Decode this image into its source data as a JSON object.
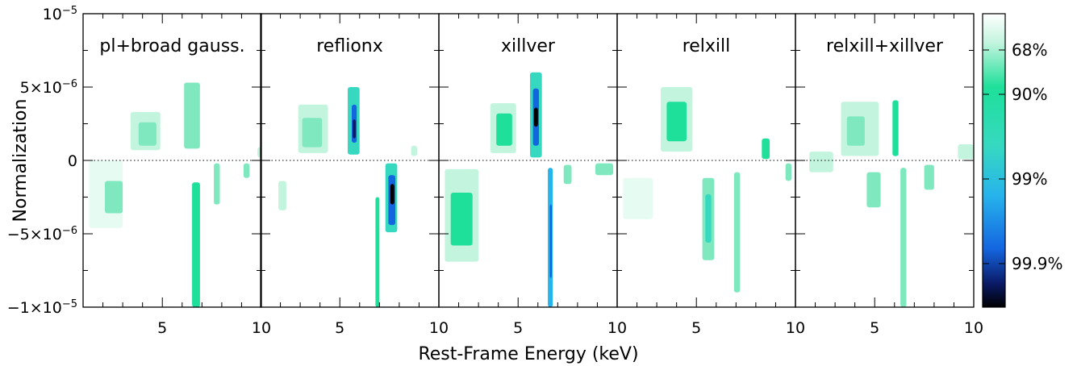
{
  "chart_data": {
    "type": "heatmap",
    "xlabel": "Rest-Frame Energy (keV)",
    "ylabel": "Normalization",
    "xlim": [
      1,
      10
    ],
    "ylim": [
      -1e-05,
      1e-05
    ],
    "x_tick_labels": [
      "5",
      "10"
    ],
    "x_ticks": [
      5,
      10
    ],
    "y_tick_labels": [
      {
        "base": "10",
        "exp": "−5",
        "value": 1e-05
      },
      {
        "base": "5×10",
        "exp": "−6",
        "value": 5e-06
      },
      {
        "base": "0",
        "exp": "",
        "value": 0
      },
      {
        "base": "−5×10",
        "exp": "−6",
        "value": -5e-06
      },
      {
        "base": "−1×10",
        "exp": "−5",
        "value": -1e-05
      }
    ],
    "colorbar": {
      "labels": [
        "68%",
        "90%",
        "99%",
        "99.9%"
      ],
      "levels": [
        0.68,
        0.9,
        0.99,
        0.999
      ],
      "colors": {
        "white": "#ffffff",
        "pale": "#e6fbf2",
        "c68": "#c2f4de",
        "c90": "#1ee09a",
        "c95": "#36d9c0",
        "c99": "#27b3ec",
        "c995": "#1466e0",
        "c999": "#0a1a66",
        "black": "#000000"
      }
    },
    "panels": [
      {
        "title": "pl+broad gauss.",
        "blobs": [
          {
            "x": [
              1.3,
              3.0
            ],
            "y": [
              -4.6e-06,
              0
            ],
            "level": 0.15
          },
          {
            "x": [
              2.1,
              3.0
            ],
            "y": [
              -3.6e-06,
              -1.4e-06
            ],
            "level": 0.45
          },
          {
            "x": [
              3.4,
              4.9
            ],
            "y": [
              7e-07,
              3.3e-06
            ],
            "level": 0.2
          },
          {
            "x": [
              3.8,
              4.7
            ],
            "y": [
              1e-06,
              2.6e-06
            ],
            "level": 0.5
          },
          {
            "x": [
              6.1,
              6.9
            ],
            "y": [
              8e-07,
              5.3e-06
            ],
            "level": 0.4
          },
          {
            "x": [
              6.5,
              6.9
            ],
            "y": [
              -1e-05,
              -1.5e-06
            ],
            "level": 0.55
          },
          {
            "x": [
              7.6,
              7.9
            ],
            "y": [
              -3e-06,
              -2e-07
            ],
            "level": 0.35
          },
          {
            "x": [
              9.1,
              9.4
            ],
            "y": [
              -1.2e-06,
              -2e-07
            ],
            "level": 0.35
          },
          {
            "x": [
              9.8,
              10.0
            ],
            "y": [
              2e-07,
              9e-07
            ],
            "level": 0.3
          }
        ]
      },
      {
        "title": "reflionx",
        "blobs": [
          {
            "x": [
              1.9,
              2.3
            ],
            "y": [
              -3.4e-06,
              -1.4e-06
            ],
            "level": 0.2
          },
          {
            "x": [
              2.9,
              4.4
            ],
            "y": [
              5e-07,
              3.8e-06
            ],
            "level": 0.25
          },
          {
            "x": [
              3.1,
              4.1
            ],
            "y": [
              9e-07,
              2.9e-06
            ],
            "level": 0.5
          },
          {
            "x": [
              5.4,
              6.0
            ],
            "y": [
              4e-07,
              5e-06
            ],
            "level": 0.75
          },
          {
            "x": [
              5.6,
              5.85
            ],
            "y": [
              1.2e-06,
              3.8e-06
            ],
            "level": 0.94
          },
          {
            "x": [
              5.65,
              5.8
            ],
            "y": [
              1.5e-06,
              2.8e-06
            ],
            "level": 0.99
          },
          {
            "x": [
              6.8,
              7.0
            ],
            "y": [
              -1e-05,
              -2.5e-06
            ],
            "level": 0.6
          },
          {
            "x": [
              7.3,
              7.9
            ],
            "y": [
              -4.9e-06,
              -2e-07
            ],
            "level": 0.8
          },
          {
            "x": [
              7.45,
              7.8
            ],
            "y": [
              -4.4e-06,
              -1e-06
            ],
            "level": 0.97
          },
          {
            "x": [
              7.55,
              7.75
            ],
            "y": [
              -3e-06,
              -1.6e-06
            ],
            "level": 0.999
          },
          {
            "x": [
              8.6,
              8.9
            ],
            "y": [
              3e-07,
              1e-06
            ],
            "level": 0.3
          }
        ]
      },
      {
        "title": "xillver",
        "blobs": [
          {
            "x": [
              1.3,
              3.0
            ],
            "y": [
              -6.9e-06,
              -6e-07
            ],
            "level": 0.3
          },
          {
            "x": [
              1.6,
              2.7
            ],
            "y": [
              -5.8e-06,
              -2.2e-06
            ],
            "level": 0.55
          },
          {
            "x": [
              3.6,
              4.9
            ],
            "y": [
              5e-07,
              3.9e-06
            ],
            "level": 0.3
          },
          {
            "x": [
              3.9,
              4.7
            ],
            "y": [
              1e-06,
              3.2e-06
            ],
            "level": 0.55
          },
          {
            "x": [
              5.6,
              6.2
            ],
            "y": [
              2e-07,
              6e-06
            ],
            "level": 0.78
          },
          {
            "x": [
              5.75,
              6.05
            ],
            "y": [
              1e-06,
              4.9e-06
            ],
            "level": 0.96
          },
          {
            "x": [
              5.8,
              6.0
            ],
            "y": [
              2.3e-06,
              3.6e-06
            ],
            "level": 0.999
          },
          {
            "x": [
              6.5,
              6.75
            ],
            "y": [
              -1e-05,
              -5e-07
            ],
            "level": 0.85
          },
          {
            "x": [
              6.6,
              6.7
            ],
            "y": [
              -8e-06,
              -3e-06
            ],
            "level": 0.975
          },
          {
            "x": [
              7.3,
              7.7
            ],
            "y": [
              -1.6e-06,
              -3e-07
            ],
            "level": 0.4
          },
          {
            "x": [
              8.9,
              9.8
            ],
            "y": [
              -1e-06,
              -2e-07
            ],
            "level": 0.45
          }
        ]
      },
      {
        "title": "relxill",
        "blobs": [
          {
            "x": [
              1.3,
              2.8
            ],
            "y": [
              -4e-06,
              -1.2e-06
            ],
            "level": 0.12
          },
          {
            "x": [
              3.2,
              4.8
            ],
            "y": [
              6e-07,
              5e-06
            ],
            "level": 0.3
          },
          {
            "x": [
              3.5,
              4.5
            ],
            "y": [
              1.3e-06,
              4e-06
            ],
            "level": 0.6
          },
          {
            "x": [
              5.3,
              5.9
            ],
            "y": [
              -6.8e-06,
              -1.2e-06
            ],
            "level": 0.45
          },
          {
            "x": [
              5.45,
              5.75
            ],
            "y": [
              -5.6e-06,
              -2.3e-06
            ],
            "level": 0.75
          },
          {
            "x": [
              6.9,
              7.2
            ],
            "y": [
              -9e-06,
              -8e-07
            ],
            "level": 0.45
          },
          {
            "x": [
              8.3,
              8.7
            ],
            "y": [
              1e-07,
              1.5e-06
            ],
            "level": 0.55
          },
          {
            "x": [
              9.5,
              9.8
            ],
            "y": [
              -1.4e-06,
              -2e-07
            ],
            "level": 0.4
          }
        ]
      },
      {
        "title": "relxill+xillver",
        "blobs": [
          {
            "x": [
              1.7,
              2.9
            ],
            "y": [
              -8e-07,
              6e-07
            ],
            "level": 0.25
          },
          {
            "x": [
              3.3,
              5.2
            ],
            "y": [
              3e-07,
              4e-06
            ],
            "level": 0.3
          },
          {
            "x": [
              3.6,
              4.5
            ],
            "y": [
              1e-06,
              3e-06
            ],
            "level": 0.5
          },
          {
            "x": [
              4.6,
              5.3
            ],
            "y": [
              -3.2e-06,
              -8e-07
            ],
            "level": 0.4
          },
          {
            "x": [
              5.9,
              6.2
            ],
            "y": [
              3e-07,
              4.1e-06
            ],
            "level": 0.6
          },
          {
            "x": [
              6.3,
              6.6
            ],
            "y": [
              -1e-05,
              -5e-07
            ],
            "level": 0.5
          },
          {
            "x": [
              7.5,
              8.0
            ],
            "y": [
              -2e-06,
              -3e-07
            ],
            "level": 0.4
          },
          {
            "x": [
              9.2,
              10.0
            ],
            "y": [
              1e-07,
              1.1e-06
            ],
            "level": 0.3
          }
        ]
      }
    ]
  }
}
